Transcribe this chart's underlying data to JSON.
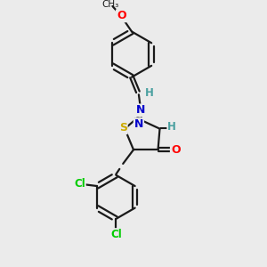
{
  "background_color": "#ebebeb",
  "bond_color": "#1a1a1a",
  "atom_colors": {
    "O": "#ff0000",
    "N": "#0000cc",
    "S": "#ccaa00",
    "Cl": "#00cc00",
    "H": "#4aa0a0",
    "C": "#1a1a1a"
  },
  "figsize": [
    3.0,
    3.0
  ],
  "dpi": 100
}
